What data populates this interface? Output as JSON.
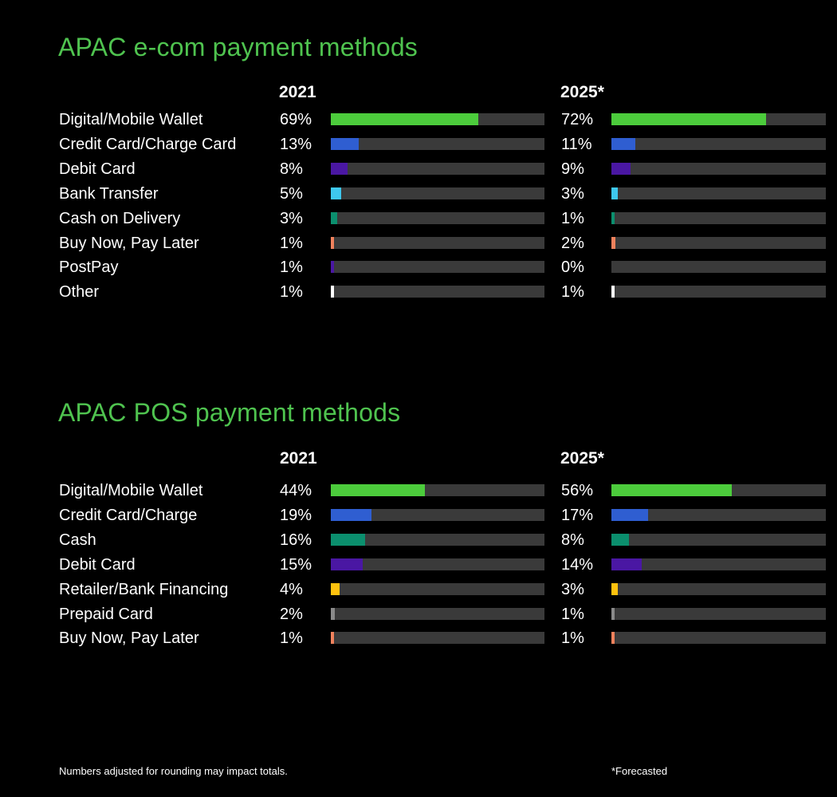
{
  "chart_data": [
    {
      "type": "bar",
      "title": "APAC e-com payment methods",
      "years": [
        "2021",
        "2025*"
      ],
      "categories": [
        "Digital/Mobile Wallet",
        "Credit Card/Charge Card",
        "Debit Card",
        "Bank Transfer",
        "Cash on Delivery",
        "Buy Now, Pay Later",
        "PostPay",
        "Other"
      ],
      "series": [
        {
          "name": "2021",
          "values": [
            69,
            13,
            8,
            5,
            3,
            1,
            1,
            1
          ],
          "labels": [
            "69%",
            "13%",
            "8%",
            "5%",
            "3%",
            "1%",
            "1%",
            "1%"
          ]
        },
        {
          "name": "2025*",
          "values": [
            72,
            11,
            9,
            3,
            1,
            2,
            0,
            1
          ],
          "labels": [
            "72%",
            "11%",
            "9%",
            "3%",
            "1%",
            "2%",
            "0%",
            "1%"
          ]
        }
      ],
      "colors": [
        "#4ccc3c",
        "#2f5ed1",
        "#4a17a3",
        "#3ec8ef",
        "#0b8f6e",
        "#f0825d",
        "#4a17a3",
        "#ffffff"
      ],
      "xlim": [
        0,
        100
      ],
      "grid": false
    },
    {
      "type": "bar",
      "title": "APAC POS payment methods",
      "years": [
        "2021",
        "2025*"
      ],
      "categories": [
        "Digital/Mobile Wallet",
        "Credit Card/Charge",
        "Cash",
        "Debit Card",
        "Retailer/Bank Financing",
        "Prepaid Card",
        "Buy Now, Pay Later"
      ],
      "series": [
        {
          "name": "2021",
          "values": [
            44,
            19,
            16,
            15,
            4,
            2,
            1
          ],
          "labels": [
            "44%",
            "19%",
            "16%",
            "15%",
            "4%",
            "2%",
            "1%"
          ]
        },
        {
          "name": "2025*",
          "values": [
            56,
            17,
            8,
            14,
            3,
            1,
            1
          ],
          "labels": [
            "56%",
            "17%",
            "8%",
            "14%",
            "3%",
            "1%",
            "1%"
          ]
        }
      ],
      "colors": [
        "#4ccc3c",
        "#2f5ed1",
        "#0b8f6e",
        "#4a17a3",
        "#ffc20e",
        "#8a8a8a",
        "#f0825d"
      ],
      "xlim": [
        0,
        100
      ],
      "grid": false
    }
  ],
  "footnotes": {
    "left": "Numbers adjusted for rounding may impact totals.",
    "right": "*Forecasted"
  }
}
